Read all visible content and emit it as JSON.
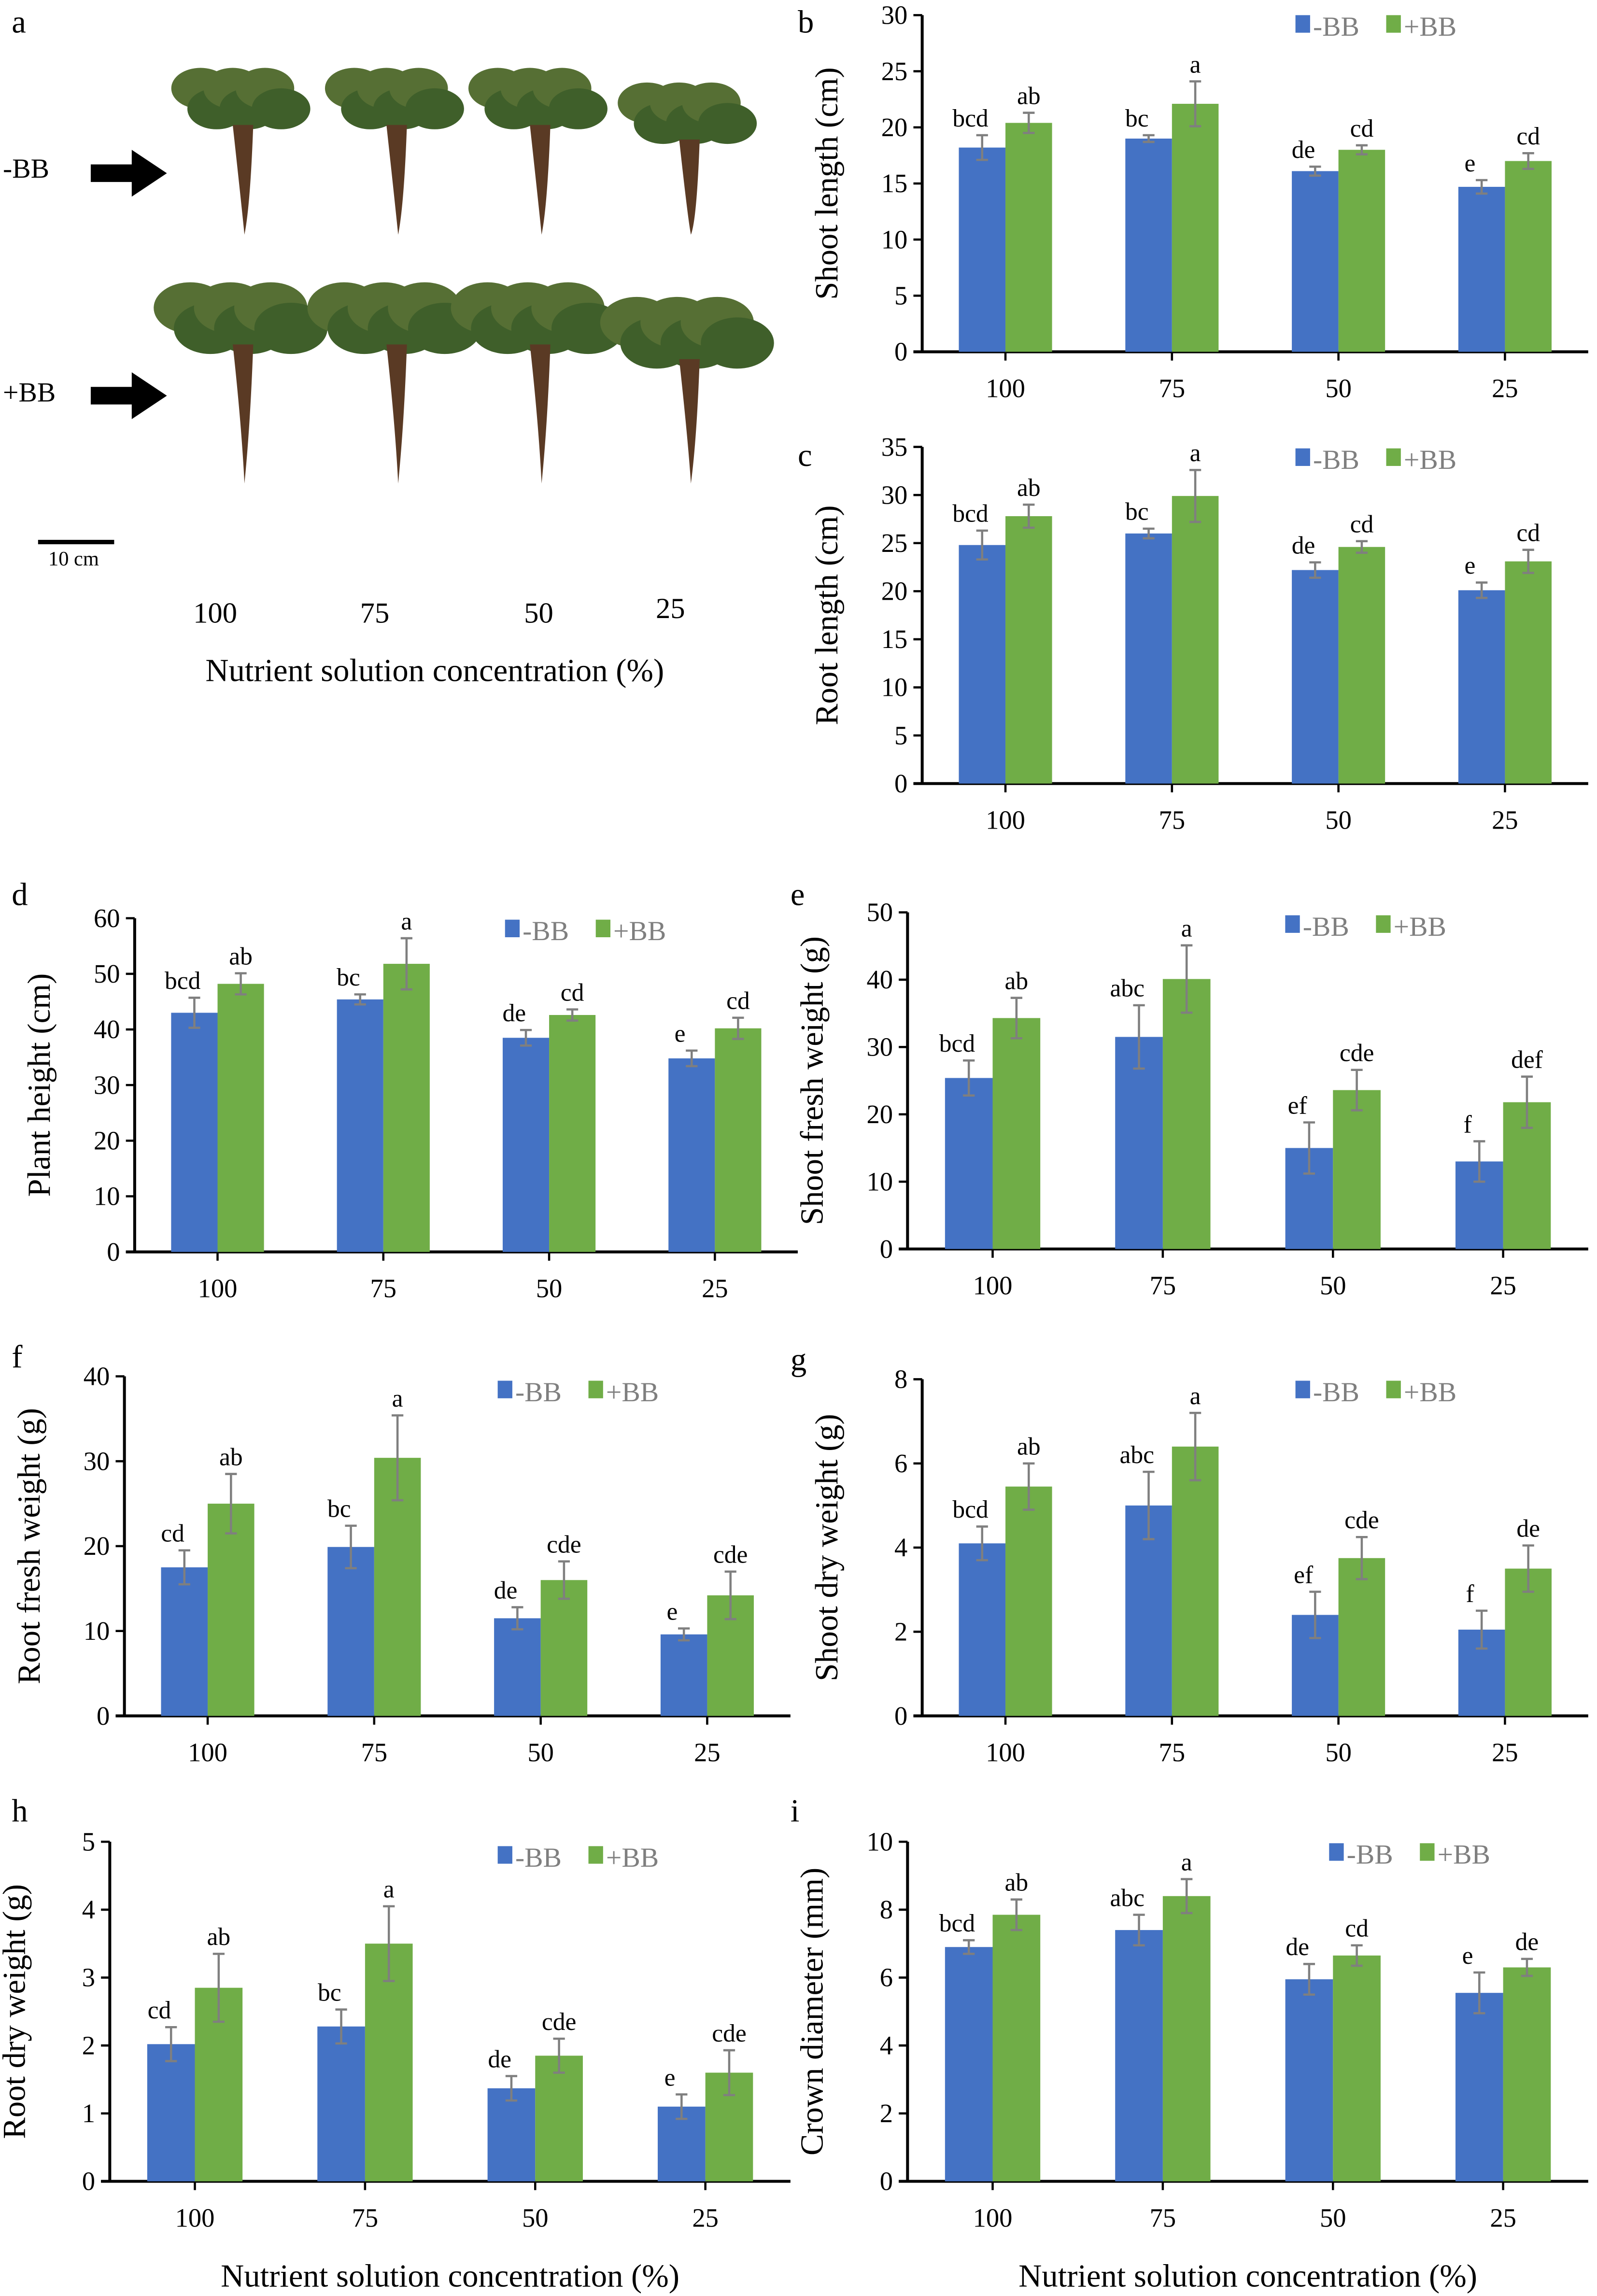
{
  "colors": {
    "minus_bb": "#4472C4",
    "plus_bb": "#70AD47",
    "error_bar": "#7f7f7f"
  },
  "panel_a": {
    "label": "a",
    "row_labels": [
      "-BB",
      "+BB"
    ],
    "arrow_icon": "right-arrow-icon",
    "scale_bar": "10 cm",
    "column_labels": [
      "100",
      "75",
      "50",
      "25"
    ],
    "xlabel": "Nutrient solution concentration (%)"
  },
  "chart_data": [
    {
      "panel": "b",
      "type": "bar",
      "categories": [
        "100",
        "75",
        "50",
        "25"
      ],
      "ylabel": "Shoot length (cm)",
      "xlabel": "",
      "ylim": [
        0,
        30
      ],
      "ytick_step": 5,
      "legend": "top-right",
      "grid": false,
      "series": [
        {
          "name": "-BB",
          "values": [
            18.2,
            19.0,
            16.1,
            14.7
          ],
          "errors": [
            1.1,
            0.3,
            0.4,
            0.6
          ],
          "letters": [
            "bcd",
            "bc",
            "de",
            "e"
          ]
        },
        {
          "name": "+BB",
          "values": [
            20.4,
            22.1,
            18.0,
            17.0
          ],
          "errors": [
            0.9,
            2.0,
            0.4,
            0.7
          ],
          "letters": [
            "ab",
            "a",
            "cd",
            "cd"
          ]
        }
      ]
    },
    {
      "panel": "c",
      "type": "bar",
      "categories": [
        "100",
        "75",
        "50",
        "25"
      ],
      "ylabel": "Root length (cm)",
      "xlabel": "",
      "ylim": [
        0,
        35
      ],
      "ytick_step": 5,
      "legend": "top-right",
      "grid": false,
      "series": [
        {
          "name": "-BB",
          "values": [
            24.8,
            26.0,
            22.2,
            20.1
          ],
          "errors": [
            1.5,
            0.5,
            0.8,
            0.8
          ],
          "letters": [
            "bcd",
            "bc",
            "de",
            "e"
          ]
        },
        {
          "name": "+BB",
          "values": [
            27.8,
            29.9,
            24.6,
            23.1
          ],
          "errors": [
            1.2,
            2.7,
            0.6,
            1.2
          ],
          "letters": [
            "ab",
            "a",
            "cd",
            "cd"
          ]
        }
      ]
    },
    {
      "panel": "d",
      "type": "bar",
      "categories": [
        "100",
        "75",
        "50",
        "25"
      ],
      "ylabel": "Plant height (cm)",
      "xlabel": "",
      "ylim": [
        0,
        60
      ],
      "ytick_step": 10,
      "legend": "top-right",
      "grid": false,
      "series": [
        {
          "name": "-BB",
          "values": [
            43.0,
            45.4,
            38.5,
            34.8
          ],
          "errors": [
            2.7,
            0.9,
            1.4,
            1.4
          ],
          "letters": [
            "bcd",
            "bc",
            "de",
            "e"
          ]
        },
        {
          "name": "+BB",
          "values": [
            48.2,
            51.8,
            42.6,
            40.2
          ],
          "errors": [
            1.9,
            4.6,
            1.0,
            1.9
          ],
          "letters": [
            "ab",
            "a",
            "cd",
            "cd"
          ]
        }
      ]
    },
    {
      "panel": "e",
      "type": "bar",
      "categories": [
        "100",
        "75",
        "50",
        "25"
      ],
      "ylabel": "Shoot fresh weight (g)",
      "xlabel": "",
      "ylim": [
        0,
        50
      ],
      "ytick_step": 10,
      "legend": "top-right",
      "grid": false,
      "series": [
        {
          "name": "-BB",
          "values": [
            25.4,
            31.5,
            15.0,
            13.0
          ],
          "errors": [
            2.6,
            4.7,
            3.8,
            3.0
          ],
          "letters": [
            "bcd",
            "abc",
            "ef",
            "f"
          ]
        },
        {
          "name": "+BB",
          "values": [
            34.3,
            40.1,
            23.6,
            21.8
          ],
          "errors": [
            3.0,
            5.0,
            3.0,
            3.8
          ],
          "letters": [
            "ab",
            "a",
            "cde",
            "def"
          ]
        }
      ]
    },
    {
      "panel": "f",
      "type": "bar",
      "categories": [
        "100",
        "75",
        "50",
        "25"
      ],
      "ylabel": "Root fresh weight (g)",
      "xlabel": "",
      "ylim": [
        0,
        40
      ],
      "ytick_step": 10,
      "legend": "top-right",
      "grid": false,
      "series": [
        {
          "name": "-BB",
          "values": [
            17.5,
            19.9,
            11.5,
            9.6
          ],
          "errors": [
            2.0,
            2.5,
            1.3,
            0.7
          ],
          "letters": [
            "cd",
            "bc",
            "de",
            "e"
          ]
        },
        {
          "name": "+BB",
          "values": [
            25.0,
            30.4,
            16.0,
            14.2
          ],
          "errors": [
            3.5,
            5.0,
            2.2,
            2.8
          ],
          "letters": [
            "ab",
            "a",
            "cde",
            "cde"
          ]
        }
      ]
    },
    {
      "panel": "g",
      "type": "bar",
      "categories": [
        "100",
        "75",
        "50",
        "25"
      ],
      "ylabel": "Shoot dry weight (g)",
      "xlabel": "",
      "ylim": [
        0,
        8
      ],
      "ytick_step": 2,
      "legend": "top-right",
      "grid": false,
      "series": [
        {
          "name": "-BB",
          "values": [
            4.1,
            5.0,
            2.4,
            2.05
          ],
          "errors": [
            0.4,
            0.8,
            0.55,
            0.45
          ],
          "letters": [
            "bcd",
            "abc",
            "ef",
            "f"
          ]
        },
        {
          "name": "+BB",
          "values": [
            5.45,
            6.4,
            3.75,
            3.5
          ],
          "errors": [
            0.55,
            0.8,
            0.5,
            0.55
          ],
          "letters": [
            "ab",
            "a",
            "cde",
            "de"
          ]
        }
      ]
    },
    {
      "panel": "h",
      "type": "bar",
      "categories": [
        "100",
        "75",
        "50",
        "25"
      ],
      "ylabel": "Root dry weight (g)",
      "xlabel": "Nutrient solution concentration (%)",
      "ylim": [
        0,
        5
      ],
      "ytick_step": 1,
      "legend": "top-right",
      "grid": false,
      "series": [
        {
          "name": "-BB",
          "values": [
            2.02,
            2.28,
            1.37,
            1.1
          ],
          "errors": [
            0.25,
            0.25,
            0.18,
            0.18
          ],
          "letters": [
            "cd",
            "bc",
            "de",
            "e"
          ]
        },
        {
          "name": "+BB",
          "values": [
            2.85,
            3.5,
            1.85,
            1.6
          ],
          "errors": [
            0.5,
            0.55,
            0.25,
            0.33
          ],
          "letters": [
            "ab",
            "a",
            "cde",
            "cde"
          ]
        }
      ]
    },
    {
      "panel": "i",
      "type": "bar",
      "categories": [
        "100",
        "75",
        "50",
        "25"
      ],
      "ylabel": "Crown diameter (mm)",
      "xlabel": "Nutrient solution concentration (%)",
      "ylim": [
        0,
        10
      ],
      "ytick_step": 2,
      "legend": "top-right",
      "grid": false,
      "series": [
        {
          "name": "-BB",
          "values": [
            6.9,
            7.4,
            5.95,
            5.55
          ],
          "errors": [
            0.2,
            0.45,
            0.45,
            0.6
          ],
          "letters": [
            "bcd",
            "abc",
            "de",
            "e"
          ]
        },
        {
          "name": "+BB",
          "values": [
            7.85,
            8.4,
            6.65,
            6.3
          ],
          "errors": [
            0.45,
            0.5,
            0.3,
            0.25
          ],
          "letters": [
            "ab",
            "a",
            "cd",
            "de"
          ]
        }
      ]
    }
  ]
}
